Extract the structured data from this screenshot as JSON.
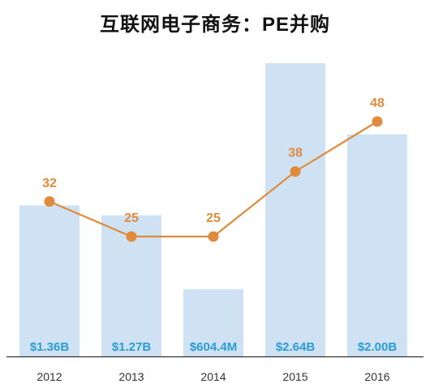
{
  "title_prefix": "互联网电子商务：",
  "title_pe": "PE",
  "title_suffix": "并购",
  "colors": {
    "bar": "#cfe2f3",
    "bar_label": "#2b9bd6",
    "line": "#e08a3c",
    "axis": "#333333"
  },
  "chart_data": {
    "type": "bar",
    "title": "互联网电子商务：PE并购",
    "categories": [
      "2012",
      "2013",
      "2014",
      "2015",
      "2016"
    ],
    "bar_values": [
      1.36,
      1.27,
      0.6044,
      2.64,
      2.0
    ],
    "bar_value_unit": "$B",
    "bar_labels": [
      "$1.36B",
      "$1.27B",
      "$604.4M",
      "$2.64B",
      "$2.00B"
    ],
    "line_values": [
      32,
      25,
      25,
      38,
      48
    ],
    "line_labels": [
      "32",
      "25",
      "25",
      "38",
      "48"
    ],
    "bar_ylim": [
      0,
      2.64
    ],
    "line_ylim": [
      0,
      48
    ],
    "grid": false,
    "legend": "none"
  }
}
